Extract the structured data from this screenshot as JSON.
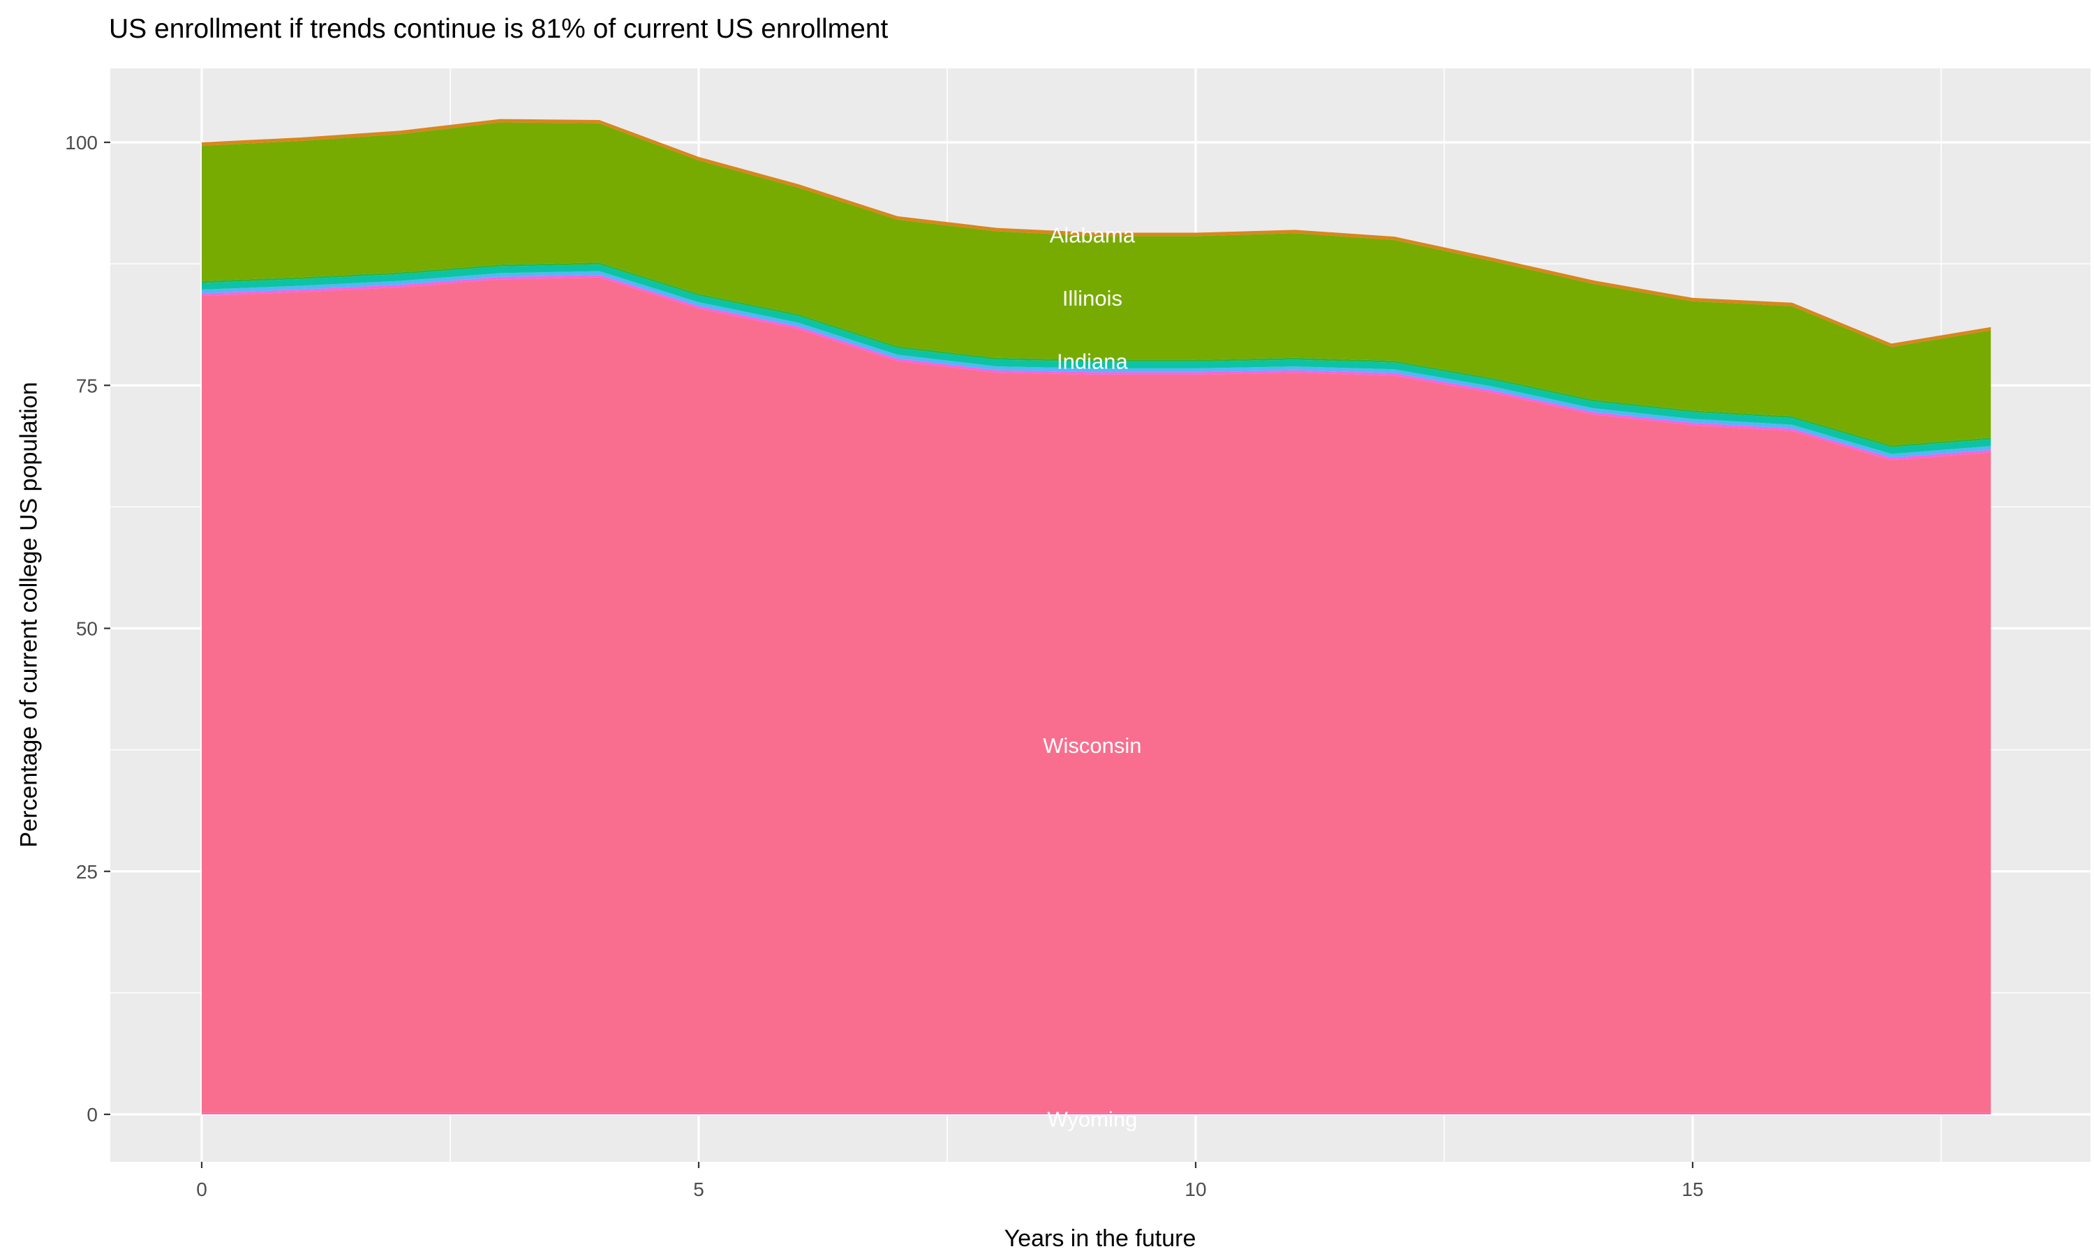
{
  "title": "US enrollment if trends continue is 81% of current US enrollment",
  "chart_data": {
    "type": "area",
    "stacked": true,
    "title": "US enrollment if trends continue is 81% of current US enrollment",
    "xlabel": "Years in the future",
    "ylabel": "Percentage of current college US population",
    "x": [
      0,
      1,
      2,
      3,
      4,
      5,
      6,
      7,
      8,
      9,
      10,
      11,
      12,
      13,
      14,
      15,
      16,
      17,
      18
    ],
    "x_ticks": [
      0,
      5,
      10,
      15
    ],
    "y_ticks": [
      0,
      25,
      50,
      75,
      100
    ],
    "x_minor_ticks": [
      2.5,
      7.5,
      12.5,
      17.5
    ],
    "y_minor_ticks": [
      12.5,
      37.5,
      62.5,
      87.5
    ],
    "xlim": [
      -0.92,
      19.0
    ],
    "ylim": [
      -4.9,
      107.6
    ],
    "grid": "on",
    "legend_position": "none",
    "series": [
      {
        "name": "Wyoming",
        "color": "#FC61CB",
        "values": 0.15
      },
      {
        "name": "Wisconsin",
        "color": "#F96E8E",
        "values": [
          84.05,
          84.45,
          84.95,
          85.75,
          85.95,
          82.75,
          80.65,
          77.35,
          76.15,
          75.95,
          75.95,
          76.15,
          75.85,
          74.05,
          71.85,
          70.75,
          70.15,
          67.15,
          67.95
        ]
      },
      {
        "name": "",
        "color": "#F664E2",
        "values": 0.25
      },
      {
        "name": "",
        "color": "#54B7F4",
        "values": 0.4
      },
      {
        "name": "Indiana",
        "color": "#0DC3A5",
        "values": 0.68
      },
      {
        "name": "",
        "color": "#2EB53C",
        "values": 0.2
      },
      {
        "name": "Illinois",
        "color": "#77AB01",
        "values": [
          13.92,
          14.02,
          14.22,
          14.62,
          14.32,
          13.72,
          13.02,
          13.02,
          13.02,
          12.72,
          12.72,
          12.82,
          12.42,
          12.02,
          11.92,
          11.22,
          11.32,
          10.12,
          11.02
        ]
      },
      {
        "name": "Alabama",
        "color": "#D8861D",
        "values": 0.35
      }
    ],
    "area_labels": [
      {
        "text": "Alabama",
        "x": 8.96,
        "y": 90.5
      },
      {
        "text": "Illinois",
        "x": 8.96,
        "y": 84.0
      },
      {
        "text": "Indiana",
        "x": 8.96,
        "y": 77.5
      },
      {
        "text": "Wisconsin",
        "x": 8.96,
        "y": 38.0
      },
      {
        "text": "Wyoming",
        "x": 8.96,
        "y": -0.45
      }
    ],
    "colors": {
      "panel_background": "#EBEBEB",
      "gridline": "#FFFFFF",
      "tick_label": "#4D4D4D",
      "tick_mark": "#333333",
      "title_text": "#000000",
      "area_label_text": "#FFFFFF"
    }
  }
}
